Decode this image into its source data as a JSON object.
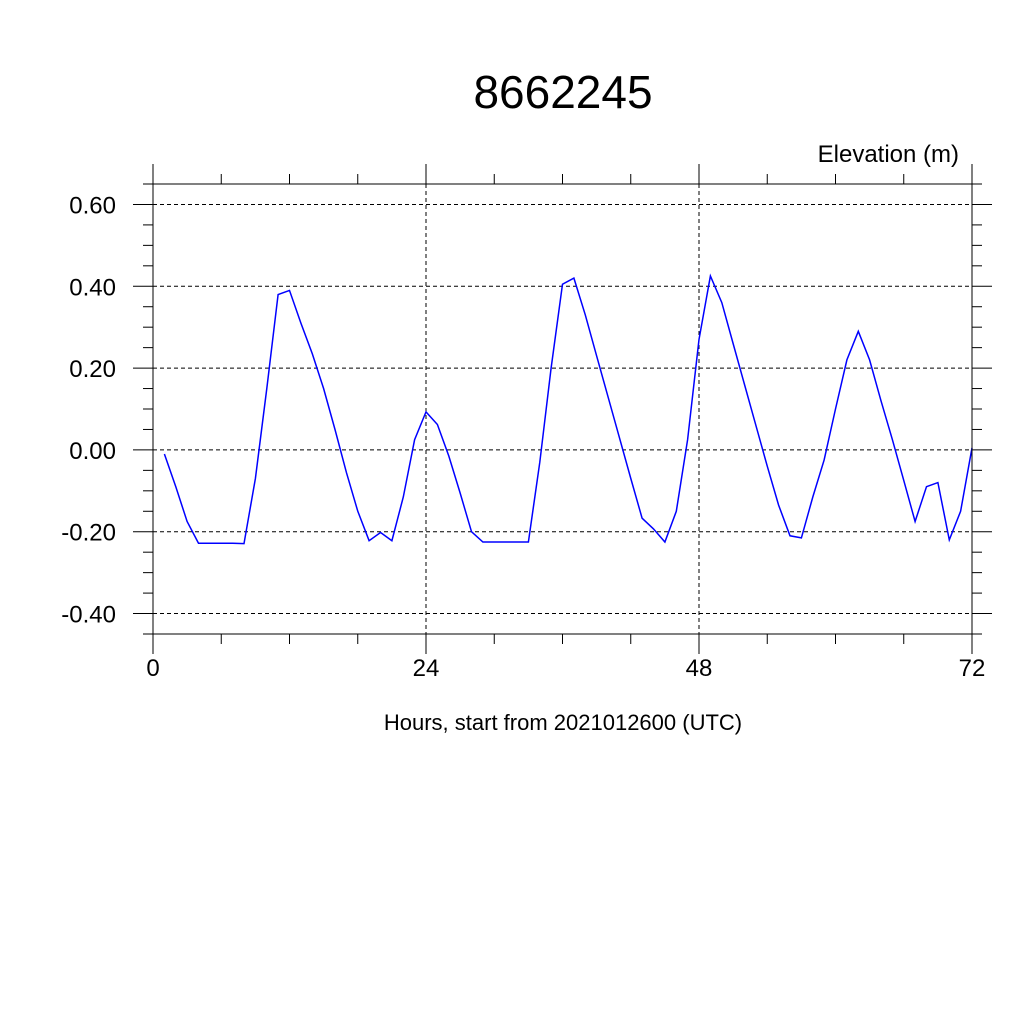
{
  "chart_data": {
    "type": "line",
    "title": "8662245",
    "subtitle": "Elevation (m)",
    "xlabel": "Hours, start from 2021012600 (UTC)",
    "ylabel": "",
    "xlim": [
      0,
      72
    ],
    "ylim": [
      -0.45,
      0.65
    ],
    "xticks": [
      0,
      24,
      48,
      72
    ],
    "xtick_labels": [
      "0",
      "24",
      "48",
      "72"
    ],
    "yticks": [
      -0.4,
      -0.2,
      0.0,
      0.2,
      0.4,
      0.6
    ],
    "ytick_labels": [
      "-0.40",
      "-0.20",
      "0.00",
      "0.20",
      "0.40",
      "0.60"
    ],
    "grid": true,
    "line_color": "#0000ff",
    "series": [
      {
        "x": [
          1,
          2,
          3,
          4,
          5,
          6,
          7,
          8,
          9,
          10,
          11,
          12,
          13,
          14,
          15,
          16,
          17,
          18,
          19,
          20,
          21,
          22,
          23,
          24,
          25,
          26,
          27,
          28,
          29,
          30,
          31,
          32,
          33,
          34,
          35,
          36,
          37,
          38,
          39,
          40,
          41,
          42,
          43,
          44,
          45,
          46,
          47,
          48,
          49,
          50,
          51,
          52,
          53,
          54,
          55,
          56,
          57,
          58,
          59,
          60,
          61,
          62,
          63,
          64,
          65,
          66,
          67,
          68,
          69,
          70,
          71,
          72
        ],
        "values": [
          -0.01,
          -0.09,
          -0.175,
          -0.228,
          -0.228,
          -0.228,
          -0.228,
          -0.229,
          -0.07,
          0.15,
          0.38,
          0.39,
          0.31,
          0.235,
          0.15,
          0.05,
          -0.055,
          -0.15,
          -0.222,
          -0.202,
          -0.222,
          -0.115,
          0.025,
          0.093,
          0.062,
          -0.015,
          -0.105,
          -0.2,
          -0.225,
          -0.225,
          -0.225,
          -0.225,
          -0.225,
          -0.03,
          0.2,
          0.405,
          0.42,
          0.33,
          0.23,
          0.13,
          0.03,
          -0.07,
          -0.167,
          -0.193,
          -0.225,
          -0.15,
          0.025,
          0.27,
          0.425,
          0.36,
          0.26,
          0.16,
          0.06,
          -0.04,
          -0.135,
          -0.21,
          -0.215,
          -0.115,
          -0.025,
          0.1,
          0.22,
          0.29,
          0.22,
          0.12,
          0.025,
          -0.075,
          -0.175,
          -0.09,
          -0.08,
          -0.22,
          -0.15,
          0.005
        ]
      }
    ]
  }
}
